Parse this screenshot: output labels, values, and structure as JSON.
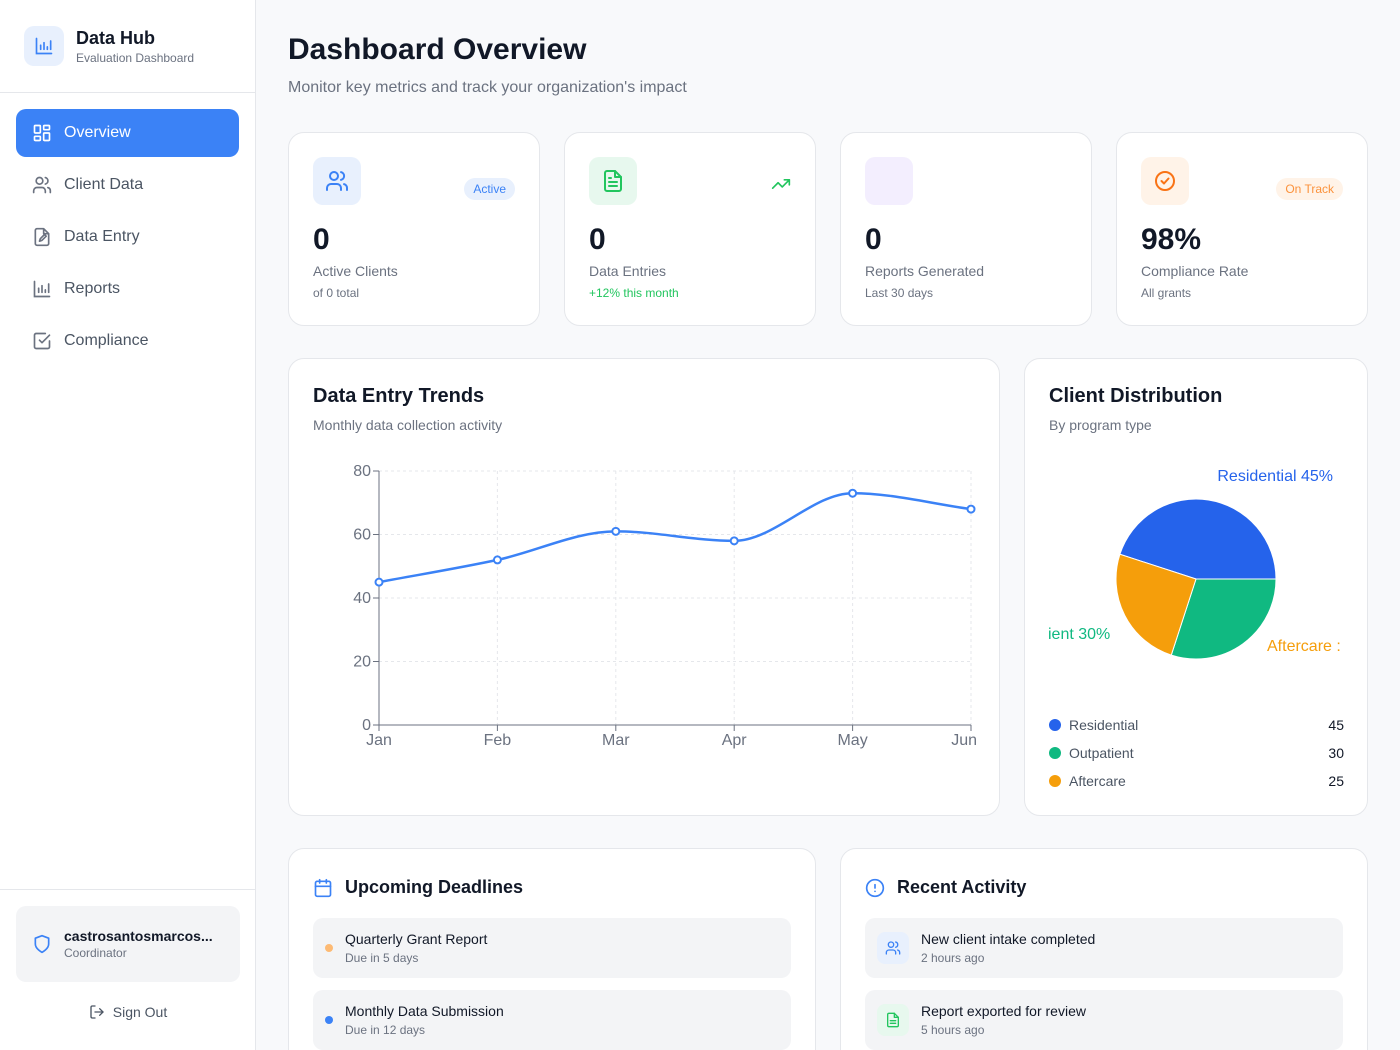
{
  "brand": {
    "title": "Data Hub",
    "subtitle": "Evaluation Dashboard",
    "icon": "bar-chart-icon"
  },
  "nav": [
    {
      "label": "Overview",
      "icon": "grid-icon",
      "active": true
    },
    {
      "label": "Client Data",
      "icon": "users-icon",
      "active": false
    },
    {
      "label": "Data Entry",
      "icon": "file-edit-icon",
      "active": false
    },
    {
      "label": "Reports",
      "icon": "bar-chart-icon",
      "active": false
    },
    {
      "label": "Compliance",
      "icon": "check-square-icon",
      "active": false
    }
  ],
  "user": {
    "name": "castrosantosmarcos...",
    "role": "Coordinator",
    "icon": "shield-icon"
  },
  "signout_label": "Sign Out",
  "page": {
    "title": "Dashboard Overview",
    "subtitle": "Monitor key metrics and track your organization's impact"
  },
  "stats": [
    {
      "value": "0",
      "label": "Active Clients",
      "sub": "of 0 total",
      "badge": "Active",
      "icon": "users-icon",
      "accent": "#3b82f6"
    },
    {
      "value": "0",
      "label": "Data Entries",
      "sub": "+12% this month",
      "badge": "",
      "icon": "file-text-icon",
      "accent": "#22c55e"
    },
    {
      "value": "0",
      "label": "Reports Generated",
      "sub": "Last 30 days",
      "badge": "",
      "icon": "",
      "accent": "#a855f7"
    },
    {
      "value": "98%",
      "label": "Compliance Rate",
      "sub": "All grants",
      "badge": "On Track",
      "icon": "check-circle-icon",
      "accent": "#f97316"
    }
  ],
  "trends": {
    "title": "Data Entry Trends",
    "subtitle": "Monthly data collection activity"
  },
  "distribution": {
    "title": "Client Distribution",
    "subtitle": "By program type",
    "pie_labels": [
      "Residential 45%",
      "ient 30%",
      "Aftercare :"
    ],
    "legend": [
      {
        "label": "Residential",
        "value": "45",
        "color": "#2563eb"
      },
      {
        "label": "Outpatient",
        "value": "30",
        "color": "#10b981"
      },
      {
        "label": "Aftercare",
        "value": "25",
        "color": "#f59e0b"
      }
    ]
  },
  "deadlines": {
    "title": "Upcoming Deadlines",
    "items": [
      {
        "title": "Quarterly Grant Report",
        "due": "Due in 5 days",
        "color": "#fb923c"
      },
      {
        "title": "Monthly Data Submission",
        "due": "Due in 12 days",
        "color": "#3b82f6"
      }
    ]
  },
  "activity": {
    "title": "Recent Activity",
    "items": [
      {
        "title": "New client intake completed",
        "time": "2 hours ago",
        "icon": "users-icon",
        "color": "#3b82f6"
      },
      {
        "title": "Report exported for review",
        "time": "5 hours ago",
        "icon": "file-text-icon",
        "color": "#22c55e"
      }
    ]
  },
  "chart_data": [
    {
      "type": "line",
      "categories": [
        "Jan",
        "Feb",
        "Mar",
        "Apr",
        "May",
        "Jun"
      ],
      "series": [
        {
          "values": [
            45,
            52,
            61,
            58,
            73,
            68
          ],
          "color": "#3b82f6"
        }
      ],
      "ylim": [
        0,
        80
      ],
      "yticks": [
        0,
        20,
        40,
        60,
        80
      ],
      "grid": true
    },
    {
      "type": "pie",
      "categories": [
        "Residential",
        "Outpatient",
        "Aftercare"
      ],
      "values": [
        45,
        30,
        25
      ],
      "colors": [
        "#2563eb",
        "#10b981",
        "#f59e0b"
      ]
    }
  ]
}
